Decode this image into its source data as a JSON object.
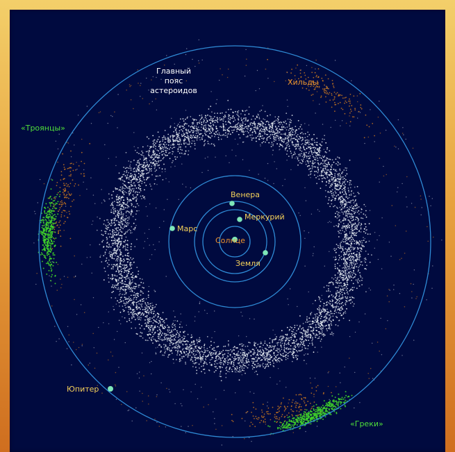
{
  "colors": {
    "background": "#000a3f",
    "orbit": "#2f8bd6",
    "belt": "#e6ecf2",
    "trojans": "#3fcf2a",
    "hildas": "#c8771f",
    "planet": "#7ee6b8",
    "label_white": "#ffffff",
    "label_yellow": "#f5d15a",
    "label_orange": "#f0962e",
    "label_green": "#4fdf3a"
  },
  "labels": {
    "main_belt_line1": "Главный",
    "main_belt_line2": "пояс",
    "main_belt_line3": "астероидов",
    "hildas": "Хильды",
    "trojans": "«Троянцы»",
    "greeks": "«Греки»",
    "venus": "Венера",
    "mercury": "Меркурий",
    "mars": "Марс",
    "sun": "Солнце",
    "earth": "Земля",
    "jupiter": "Юпитер"
  }
}
